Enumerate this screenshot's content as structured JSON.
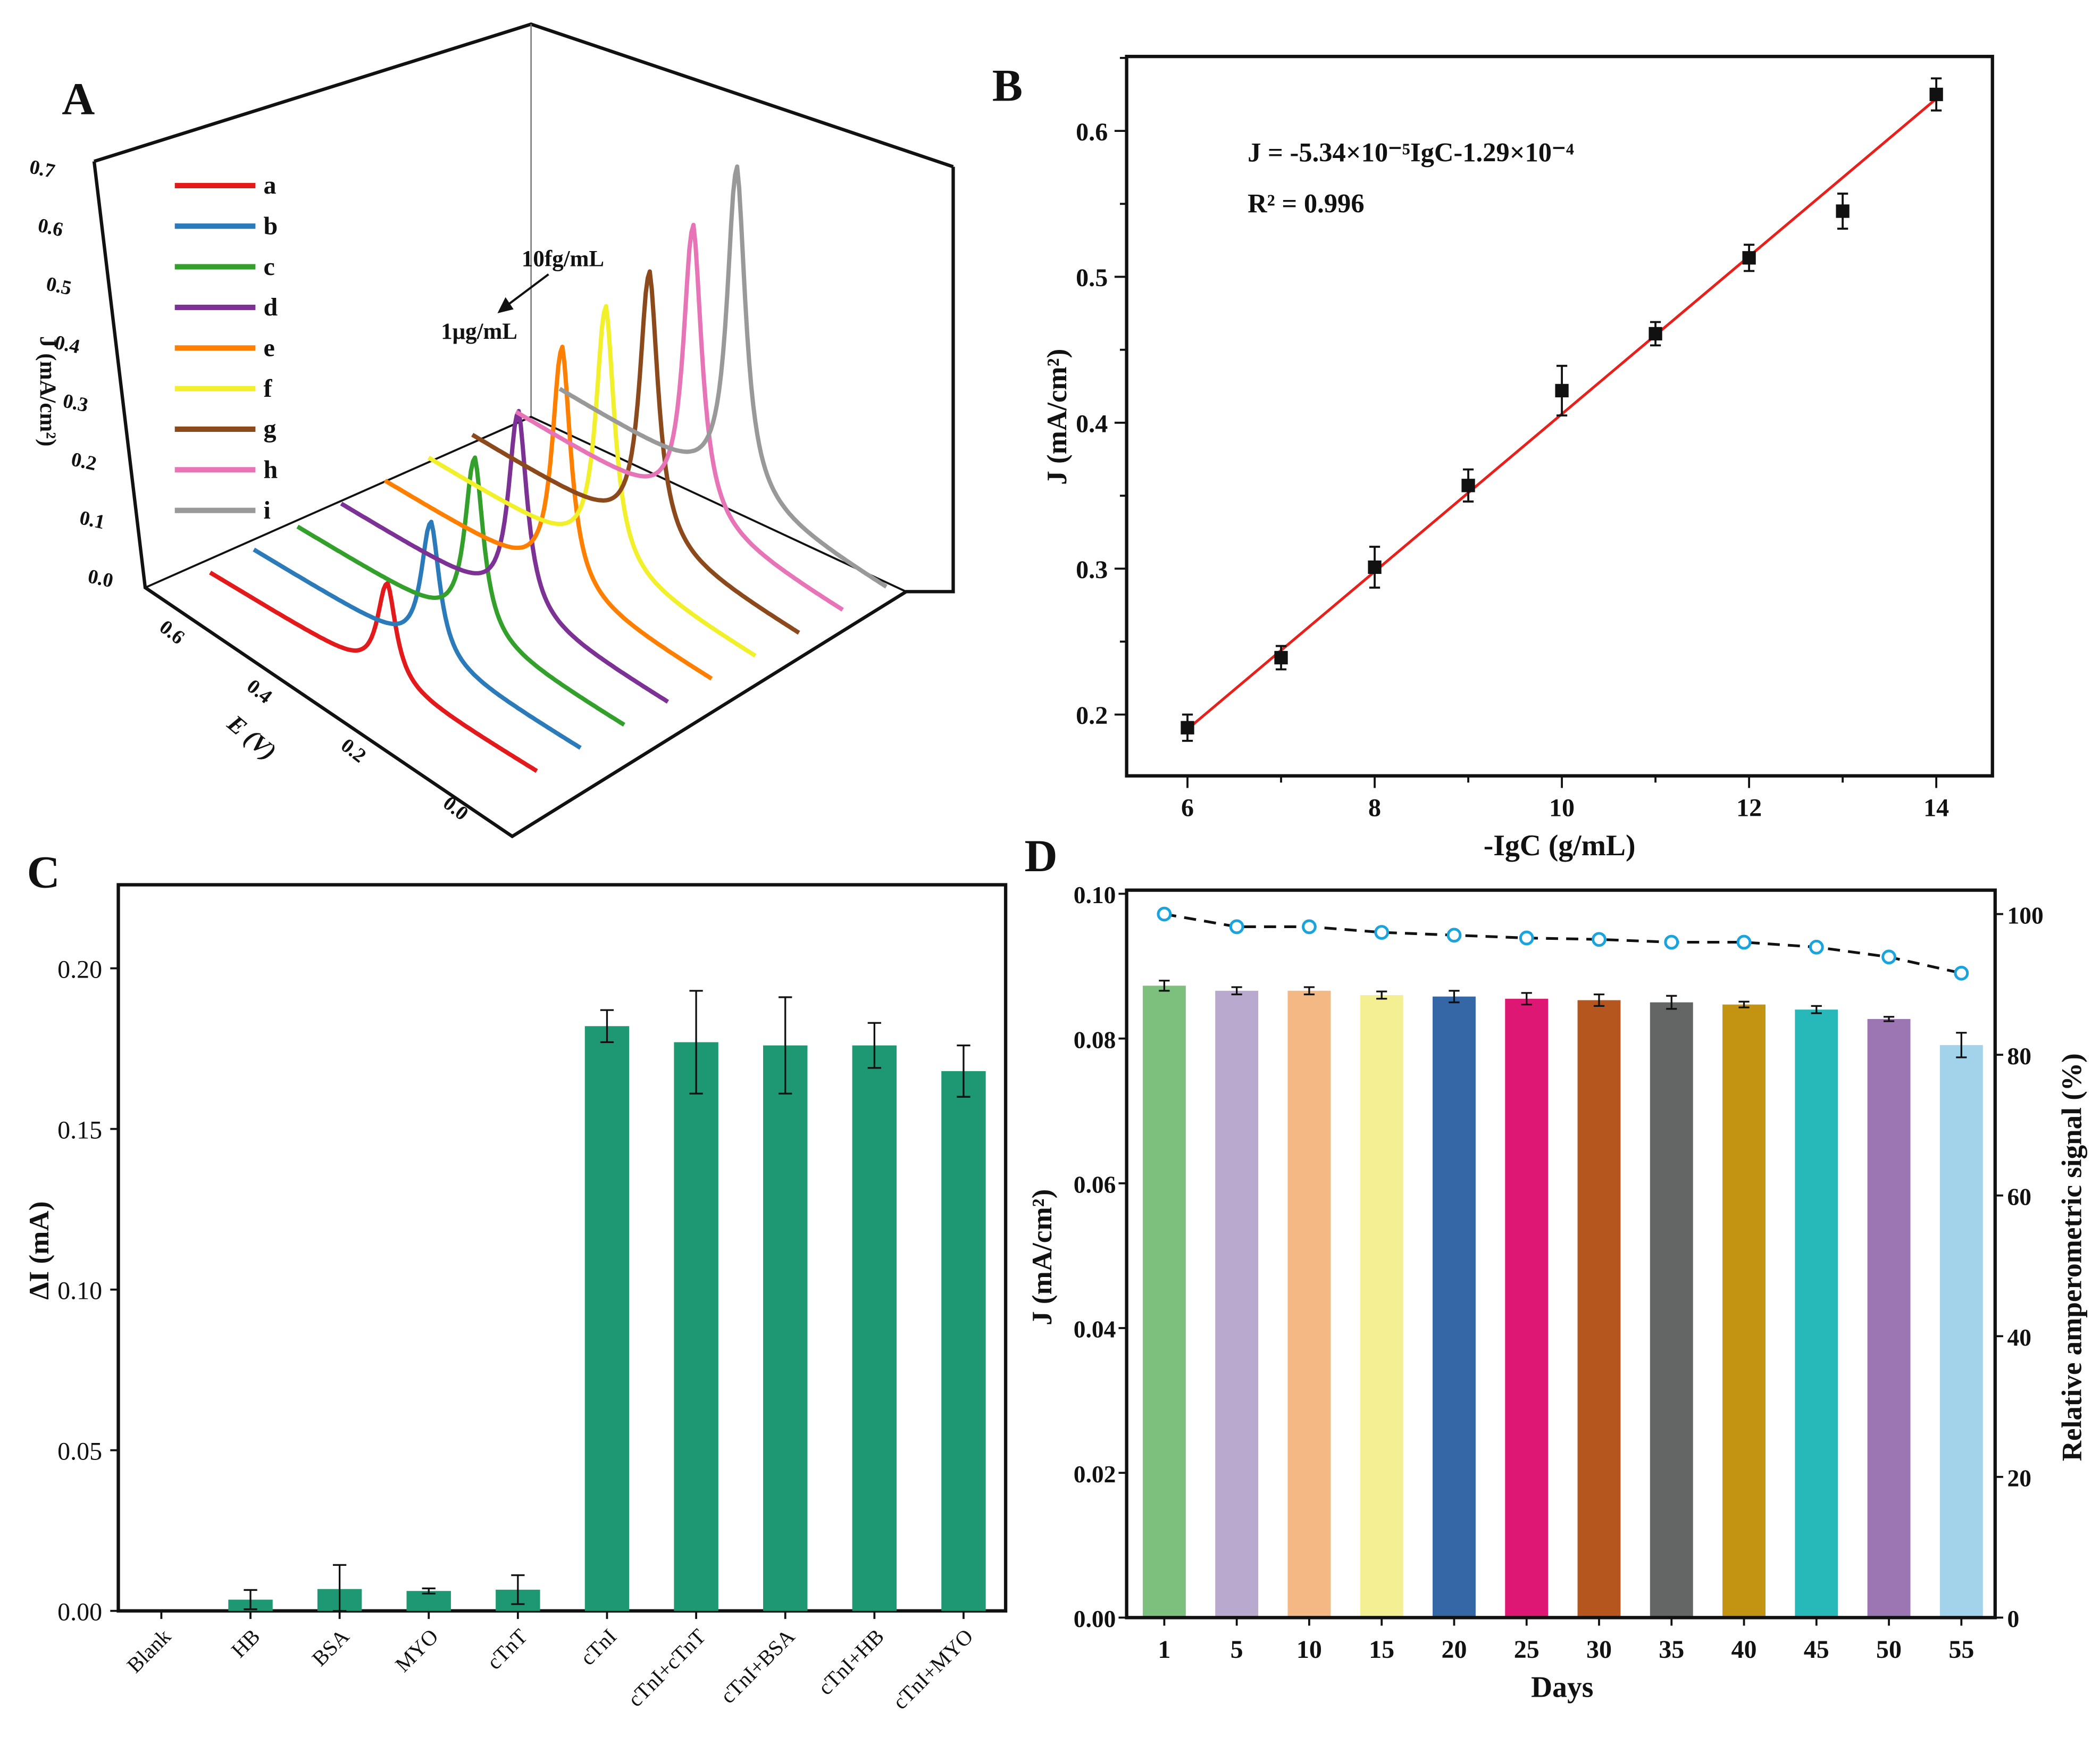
{
  "chart_data": [
    {
      "panel": "A",
      "type": "line",
      "view": "3d-waterfall",
      "ylabel": "J (mA/cm²)",
      "xlabel": "E (V)",
      "yticks": [
        "0.0",
        "0.1",
        "0.2",
        "0.3",
        "0.4",
        "0.5",
        "0.6",
        "0.7"
      ],
      "xticks": [
        "0.6",
        "0.4",
        "0.2",
        "0.0"
      ],
      "peak_potential": 0.3,
      "series": [
        {
          "name": "a",
          "color": "#e31a1c",
          "peak": 0.165
        },
        {
          "name": "b",
          "color": "#2b7bba",
          "peak": 0.23
        },
        {
          "name": "c",
          "color": "#33a02c",
          "peak": 0.3
        },
        {
          "name": "d",
          "color": "#7b3294",
          "peak": 0.34
        },
        {
          "name": "e",
          "color": "#ff7f00",
          "peak": 0.41
        },
        {
          "name": "f",
          "color": "#f2f02a",
          "peak": 0.44
        },
        {
          "name": "g",
          "color": "#8c4a1c",
          "peak": 0.46
        },
        {
          "name": "h",
          "color": "#e874b8",
          "peak": 0.5
        },
        {
          "name": "i",
          "color": "#999999",
          "peak": 0.56
        }
      ],
      "annotations": {
        "from": "10fg/mL",
        "to": "1μg/mL"
      },
      "legend": "top-left"
    },
    {
      "panel": "B",
      "type": "scatter",
      "xlabel": "-IgC (g/mL)",
      "ylabel": "J (mA/cm²)",
      "xlim": [
        5.35,
        14.6
      ],
      "ylim": [
        0.158,
        0.651
      ],
      "xticks": [
        "6",
        "8",
        "10",
        "12",
        "14"
      ],
      "yticks": [
        "0.2",
        "0.3",
        "0.4",
        "0.5",
        "0.6"
      ],
      "x": [
        6,
        7,
        8,
        9,
        10,
        11,
        12,
        13,
        14
      ],
      "y": [
        0.191,
        0.239,
        0.301,
        0.357,
        0.422,
        0.461,
        0.513,
        0.545,
        0.625
      ],
      "error": [
        0.009,
        0.008,
        0.014,
        0.011,
        0.017,
        0.008,
        0.009,
        0.012,
        0.011
      ],
      "fit": {
        "x": [
          6,
          14
        ],
        "y": [
          0.19,
          0.622
        ],
        "color": "#e8201c"
      },
      "equation": "J = -5.34×10⁻⁵IgC-1.29×10⁻⁴",
      "r2": "R² = 0.996"
    },
    {
      "panel": "C",
      "type": "bar",
      "ylabel": "ΔI (mA)",
      "ylim": [
        0,
        0.226
      ],
      "yticks": [
        "0.00",
        "0.05",
        "0.10",
        "0.15",
        "0.20"
      ],
      "categories": [
        "Blank",
        "HB",
        "BSA",
        "MYO",
        "cTnT",
        "cTnI",
        "cTnI+cTnT",
        "cTnI+BSA",
        "cTnI+HB",
        "cTnI+MYO"
      ],
      "values": [
        0,
        0.0035,
        0.0068,
        0.0062,
        0.0066,
        0.182,
        0.177,
        0.176,
        0.176,
        0.168
      ],
      "error": [
        0,
        0.003,
        0.0075,
        0.0008,
        0.0045,
        0.005,
        0.016,
        0.015,
        0.007,
        0.008
      ],
      "color": "#1e9873"
    },
    {
      "panel": "D",
      "type": "bar",
      "xlabel": "Days",
      "ylabel": "J (mA/cm²)",
      "y2label": "Relative amperometric signal (%)",
      "ylim": [
        0,
        0.1005
      ],
      "y2lim": [
        0,
        103.4
      ],
      "yticks": [
        "0.00",
        "0.02",
        "0.04",
        "0.06",
        "0.08",
        "0.10"
      ],
      "y2ticks": [
        "0",
        "20",
        "40",
        "60",
        "80",
        "100"
      ],
      "categories": [
        "1",
        "5",
        "10",
        "15",
        "20",
        "25",
        "30",
        "35",
        "40",
        "45",
        "50",
        "55"
      ],
      "values": [
        0.0873,
        0.0866,
        0.0866,
        0.086,
        0.0858,
        0.0855,
        0.0853,
        0.085,
        0.0847,
        0.084,
        0.0827,
        0.0791
      ],
      "error": [
        0.0007,
        0.0005,
        0.0005,
        0.0005,
        0.0008,
        0.0008,
        0.0008,
        0.0009,
        0.0004,
        0.0005,
        0.0003,
        0.0017
      ],
      "colors": [
        "#7dbf7c",
        "#baa9cf",
        "#f4b885",
        "#f5ef94",
        "#3566a6",
        "#df1774",
        "#b5561f",
        "#646666",
        "#c29411",
        "#27b8ba",
        "#9b76b2",
        "#a2d3ea"
      ],
      "line": {
        "values": [
          100,
          98.2,
          98.2,
          97.4,
          97.0,
          96.6,
          96.4,
          96.0,
          96.0,
          95.3,
          93.9,
          91.6
        ],
        "marker_color": "#1aa3dc",
        "line_color": "#111111"
      }
    }
  ],
  "panel_labels": [
    "A",
    "B",
    "C",
    "D"
  ]
}
